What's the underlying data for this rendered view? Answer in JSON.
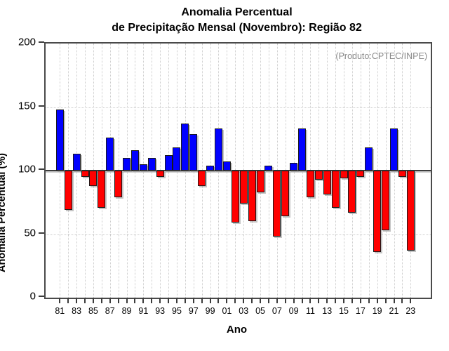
{
  "chart_data": {
    "type": "bar",
    "title_line1": "Anomalia Percentual",
    "title_line2": "de Precipitação Mensal (Novembro): Região 82",
    "annotation": "(Produto:CPTEC/INPE)",
    "ylabel": "Anomalia Percentual (%)",
    "xlabel": "Ano",
    "ylim": [
      0,
      200
    ],
    "yticks": [
      0,
      50,
      100,
      150,
      200
    ],
    "baseline": 100,
    "grid": "dotted",
    "grid_y_values": [
      50,
      150
    ],
    "legend": "none",
    "color_above": "#0000ff",
    "color_below": "#ff0000",
    "bar_border_color": "#1a1a1a",
    "categories": [
      "81",
      "82",
      "83",
      "84",
      "85",
      "86",
      "87",
      "88",
      "89",
      "90",
      "91",
      "92",
      "93",
      "94",
      "95",
      "96",
      "97",
      "98",
      "99",
      "00",
      "01",
      "02",
      "03",
      "04",
      "05",
      "06",
      "07",
      "08",
      "09",
      "10",
      "11",
      "12",
      "13",
      "14",
      "15",
      "16",
      "17",
      "18",
      "19",
      "20",
      "21",
      "22",
      "23"
    ],
    "x_labeled_ticks": [
      "81",
      "83",
      "85",
      "87",
      "89",
      "91",
      "93",
      "95",
      "97",
      "99",
      "01",
      "03",
      "05",
      "07",
      "09",
      "11",
      "13",
      "15",
      "17",
      "19",
      "21",
      "23"
    ],
    "values": [
      148,
      69,
      113,
      95,
      88,
      71,
      126,
      79,
      110,
      116,
      105,
      110,
      95,
      112,
      118,
      137,
      129,
      88,
      104,
      133,
      107,
      59,
      74,
      60,
      83,
      104,
      48,
      64,
      106,
      133,
      79,
      93,
      81,
      71,
      94,
      67,
      95,
      118,
      36,
      53,
      133,
      95,
      37
    ]
  }
}
